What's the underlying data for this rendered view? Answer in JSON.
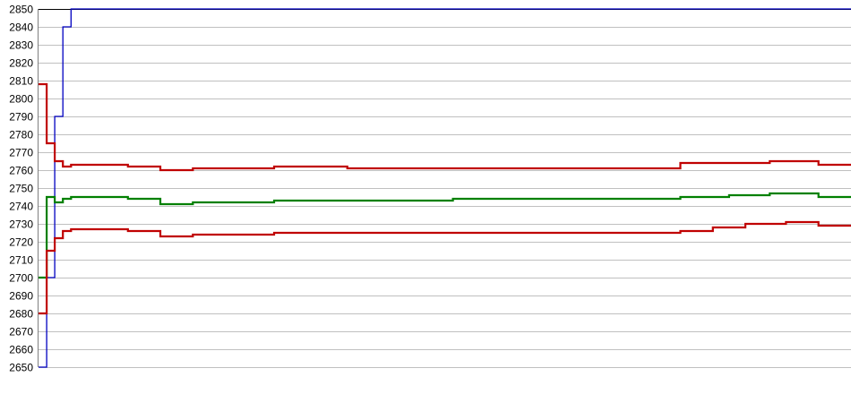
{
  "chart_data": {
    "type": "line",
    "title": "",
    "xlabel": "",
    "ylabel": "",
    "ylim": [
      2650,
      2850
    ],
    "y_ticks": [
      2650,
      2660,
      2670,
      2680,
      2690,
      2700,
      2710,
      2720,
      2730,
      2740,
      2750,
      2760,
      2770,
      2780,
      2790,
      2800,
      2810,
      2820,
      2830,
      2840,
      2850
    ],
    "grid": true,
    "legend": "none",
    "x_tick_labels_note_free": true,
    "series": [
      {
        "color": "#0000c0",
        "values": [
          2650,
          2700,
          2790,
          2840,
          2850,
          2850,
          2850,
          2850,
          2850,
          2850,
          2850,
          2850,
          2850,
          2850,
          2850,
          2850,
          2850,
          2850,
          2850,
          2850,
          2850,
          2850,
          2850,
          2850,
          2850,
          2850,
          2850,
          2850,
          2850,
          2850,
          2850,
          2850,
          2850,
          2850,
          2850,
          2850,
          2850,
          2850,
          2850,
          2850,
          2850,
          2850,
          2850,
          2850,
          2850,
          2850,
          2850,
          2850,
          2850,
          2850,
          2850,
          2850,
          2850,
          2850,
          2850,
          2850,
          2850,
          2850,
          2850,
          2850,
          2850,
          2850,
          2850,
          2850,
          2850,
          2850,
          2850,
          2850,
          2850,
          2850,
          2850,
          2850,
          2850,
          2850,
          2850,
          2850,
          2850,
          2850,
          2850,
          2850,
          2850,
          2850,
          2850,
          2850,
          2850,
          2850,
          2850,
          2850,
          2850,
          2850,
          2850,
          2850,
          2850,
          2850,
          2850,
          2850,
          2850,
          2850,
          2850,
          2850,
          2850
        ]
      },
      {
        "color": "#c00000",
        "values": [
          2808,
          2775,
          2765,
          2762,
          2763,
          2763,
          2763,
          2763,
          2763,
          2763,
          2763,
          2762,
          2762,
          2762,
          2762,
          2760,
          2760,
          2760,
          2760,
          2761,
          2761,
          2761,
          2761,
          2761,
          2761,
          2761,
          2761,
          2761,
          2761,
          2762,
          2762,
          2762,
          2762,
          2762,
          2762,
          2762,
          2762,
          2762,
          2761,
          2761,
          2761,
          2761,
          2761,
          2761,
          2761,
          2761,
          2761,
          2761,
          2761,
          2761,
          2761,
          2761,
          2761,
          2761,
          2761,
          2761,
          2761,
          2761,
          2761,
          2761,
          2761,
          2761,
          2761,
          2761,
          2761,
          2761,
          2761,
          2761,
          2761,
          2761,
          2761,
          2761,
          2761,
          2761,
          2761,
          2761,
          2761,
          2761,
          2761,
          2764,
          2764,
          2764,
          2764,
          2764,
          2764,
          2764,
          2764,
          2764,
          2764,
          2764,
          2765,
          2765,
          2765,
          2765,
          2765,
          2765,
          2763,
          2763,
          2763,
          2763,
          2763
        ]
      },
      {
        "color": "#008000",
        "values": [
          2700,
          2745,
          2742,
          2744,
          2745,
          2745,
          2745,
          2745,
          2745,
          2745,
          2745,
          2744,
          2744,
          2744,
          2744,
          2741,
          2741,
          2741,
          2741,
          2742,
          2742,
          2742,
          2742,
          2742,
          2742,
          2742,
          2742,
          2742,
          2742,
          2743,
          2743,
          2743,
          2743,
          2743,
          2743,
          2743,
          2743,
          2743,
          2743,
          2743,
          2743,
          2743,
          2743,
          2743,
          2743,
          2743,
          2743,
          2743,
          2743,
          2743,
          2743,
          2744,
          2744,
          2744,
          2744,
          2744,
          2744,
          2744,
          2744,
          2744,
          2744,
          2744,
          2744,
          2744,
          2744,
          2744,
          2744,
          2744,
          2744,
          2744,
          2744,
          2744,
          2744,
          2744,
          2744,
          2744,
          2744,
          2744,
          2744,
          2745,
          2745,
          2745,
          2745,
          2745,
          2745,
          2746,
          2746,
          2746,
          2746,
          2746,
          2747,
          2747,
          2747,
          2747,
          2747,
          2747,
          2745,
          2745,
          2745,
          2745,
          2745
        ]
      },
      {
        "color": "#c00000",
        "values": [
          2680,
          2715,
          2722,
          2726,
          2727,
          2727,
          2727,
          2727,
          2727,
          2727,
          2727,
          2726,
          2726,
          2726,
          2726,
          2723,
          2723,
          2723,
          2723,
          2724,
          2724,
          2724,
          2724,
          2724,
          2724,
          2724,
          2724,
          2724,
          2724,
          2725,
          2725,
          2725,
          2725,
          2725,
          2725,
          2725,
          2725,
          2725,
          2725,
          2725,
          2725,
          2725,
          2725,
          2725,
          2725,
          2725,
          2725,
          2725,
          2725,
          2725,
          2725,
          2725,
          2725,
          2725,
          2725,
          2725,
          2725,
          2725,
          2725,
          2725,
          2725,
          2725,
          2725,
          2725,
          2725,
          2725,
          2725,
          2725,
          2725,
          2725,
          2725,
          2725,
          2725,
          2725,
          2725,
          2725,
          2725,
          2725,
          2725,
          2726,
          2726,
          2726,
          2726,
          2728,
          2728,
          2728,
          2728,
          2730,
          2730,
          2730,
          2730,
          2730,
          2731,
          2731,
          2731,
          2731,
          2729,
          2729,
          2729,
          2729,
          2729
        ]
      }
    ]
  }
}
